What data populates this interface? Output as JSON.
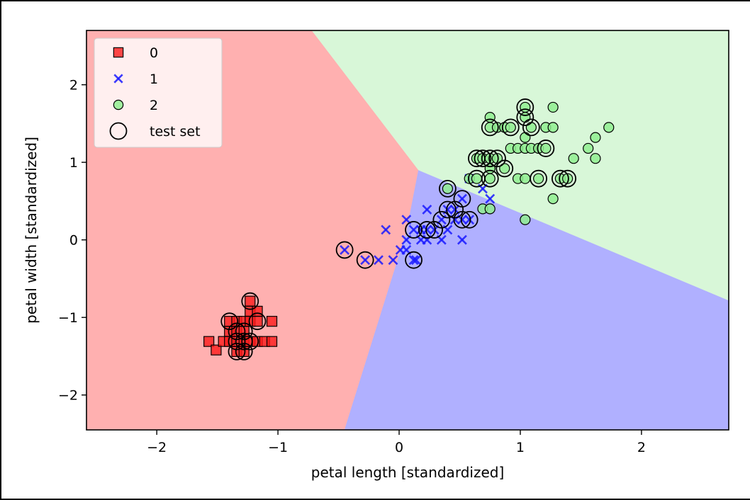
{
  "chart_data": {
    "type": "scatter",
    "title": "",
    "xlabel": "petal length [standardized]",
    "ylabel": "petal width [standardized]",
    "xlim": [
      -2.58,
      2.72
    ],
    "ylim": [
      -2.45,
      2.7
    ],
    "xticks": [
      -2,
      -1,
      0,
      1,
      2
    ],
    "xtick_labels": [
      "−2",
      "−1",
      "0",
      "1",
      "2"
    ],
    "yticks": [
      -2,
      -1,
      0,
      1,
      2
    ],
    "ytick_labels": [
      "−2",
      "−1",
      "0",
      "1",
      "2"
    ],
    "grid": false,
    "legend_position": "top-left",
    "regions": [
      {
        "class": "0",
        "color": "#ffb0b0",
        "polygon": [
          [
            -2.58,
            2.7
          ],
          [
            -0.72,
            2.7
          ],
          [
            0.16,
            0.9
          ],
          [
            0.06,
            0.1
          ],
          [
            -0.45,
            -2.45
          ],
          [
            -2.58,
            -2.45
          ]
        ]
      },
      {
        "class": "1",
        "color": "#b0b0ff",
        "polygon": [
          [
            0.16,
            0.9
          ],
          [
            2.72,
            -0.78
          ],
          [
            2.72,
            -2.45
          ],
          [
            -0.45,
            -2.45
          ],
          [
            0.06,
            0.1
          ]
        ]
      },
      {
        "class": "2",
        "color": "#d8f7d8",
        "polygon": [
          [
            -0.72,
            2.7
          ],
          [
            2.72,
            2.7
          ],
          [
            2.72,
            -0.78
          ],
          [
            0.16,
            0.9
          ]
        ]
      }
    ],
    "series": [
      {
        "name": "0",
        "marker": "square",
        "color": "#ff1a1a",
        "points": [
          [
            -1.57,
            -1.31
          ],
          [
            -1.51,
            -1.42
          ],
          [
            -1.45,
            -1.31
          ],
          [
            -1.4,
            -1.31
          ],
          [
            -1.4,
            -1.18
          ],
          [
            -1.4,
            -1.05
          ],
          [
            -1.34,
            -1.31
          ],
          [
            -1.34,
            -1.18
          ],
          [
            -1.34,
            -1.05
          ],
          [
            -1.34,
            -1.44
          ],
          [
            -1.28,
            -1.31
          ],
          [
            -1.28,
            -1.18
          ],
          [
            -1.28,
            -1.05
          ],
          [
            -1.28,
            -1.44
          ],
          [
            -1.23,
            -1.31
          ],
          [
            -1.23,
            -1.05
          ],
          [
            -1.23,
            -0.92
          ],
          [
            -1.23,
            -0.79
          ],
          [
            -1.17,
            -1.31
          ],
          [
            -1.17,
            -1.05
          ],
          [
            -1.17,
            -0.92
          ],
          [
            -1.11,
            -1.31
          ],
          [
            -1.05,
            -1.05
          ],
          [
            -1.05,
            -1.31
          ]
        ]
      },
      {
        "name": "1",
        "marker": "x",
        "color": "#1a1aff",
        "points": [
          [
            -0.45,
            -0.13
          ],
          [
            -0.28,
            -0.26
          ],
          [
            -0.17,
            -0.26
          ],
          [
            -0.11,
            0.13
          ],
          [
            -0.05,
            -0.26
          ],
          [
            0.01,
            -0.13
          ],
          [
            0.06,
            0
          ],
          [
            0.06,
            0.26
          ],
          [
            0.06,
            -0.13
          ],
          [
            0.12,
            0.13
          ],
          [
            0.12,
            -0.26
          ],
          [
            0.14,
            -0.26
          ],
          [
            0.18,
            0.13
          ],
          [
            0.18,
            0
          ],
          [
            0.23,
            0.13
          ],
          [
            0.23,
            0
          ],
          [
            0.23,
            0.39
          ],
          [
            0.29,
            0.13
          ],
          [
            0.35,
            0
          ],
          [
            0.35,
            0.26
          ],
          [
            0.4,
            0.39
          ],
          [
            0.4,
            0.13
          ],
          [
            0.46,
            0.39
          ],
          [
            0.46,
            0.26
          ],
          [
            0.52,
            0.26
          ],
          [
            0.52,
            0.53
          ],
          [
            0.52,
            0
          ],
          [
            0.58,
            0.26
          ],
          [
            0.58,
            0.79
          ],
          [
            0.69,
            0.66
          ],
          [
            0.75,
            0.53
          ]
        ]
      },
      {
        "name": "2",
        "marker": "circle",
        "color": "#90ee90",
        "points": [
          [
            0.4,
            0.66
          ],
          [
            0.58,
            0.79
          ],
          [
            0.64,
            1.05
          ],
          [
            0.64,
            0.79
          ],
          [
            0.69,
            1.05
          ],
          [
            0.69,
            0.4
          ],
          [
            0.75,
            1.58
          ],
          [
            0.75,
            1.45
          ],
          [
            0.75,
            1.05
          ],
          [
            0.75,
            0.92
          ],
          [
            0.75,
            0.79
          ],
          [
            0.75,
            0.4
          ],
          [
            0.81,
            1.05
          ],
          [
            0.81,
            1.45
          ],
          [
            0.87,
            0.92
          ],
          [
            0.87,
            1.45
          ],
          [
            0.92,
            1.45
          ],
          [
            0.92,
            1.18
          ],
          [
            0.98,
            0.79
          ],
          [
            0.98,
            1.18
          ],
          [
            1.04,
            1.32
          ],
          [
            1.04,
            1.58
          ],
          [
            1.04,
            1.71
          ],
          [
            1.04,
            1.18
          ],
          [
            1.04,
            0.79
          ],
          [
            1.04,
            0.26
          ],
          [
            1.09,
            1.45
          ],
          [
            1.09,
            1.18
          ],
          [
            1.15,
            1.18
          ],
          [
            1.15,
            0.79
          ],
          [
            1.21,
            1.45
          ],
          [
            1.21,
            1.18
          ],
          [
            1.27,
            1.71
          ],
          [
            1.27,
            1.45
          ],
          [
            1.27,
            0.53
          ],
          [
            1.33,
            0.79
          ],
          [
            1.39,
            0.79
          ],
          [
            1.44,
            1.05
          ],
          [
            1.56,
            1.18
          ],
          [
            1.62,
            1.32
          ],
          [
            1.62,
            1.05
          ],
          [
            1.73,
            1.45
          ]
        ]
      }
    ],
    "test_set": {
      "name": "test set",
      "marker": "open-circle",
      "points": [
        [
          -1.23,
          -0.79
        ],
        [
          -1.4,
          -1.05
        ],
        [
          -1.34,
          -1.18
        ],
        [
          -1.17,
          -1.05
        ],
        [
          -1.28,
          -1.31
        ],
        [
          -1.34,
          -1.31
        ],
        [
          -1.28,
          -1.44
        ],
        [
          -1.34,
          -1.44
        ],
        [
          -1.23,
          -1.31
        ],
        [
          -1.28,
          -1.18
        ],
        [
          -0.45,
          -0.13
        ],
        [
          -0.28,
          -0.26
        ],
        [
          0.12,
          -0.26
        ],
        [
          0.12,
          0.13
        ],
        [
          0.23,
          0.13
        ],
        [
          0.29,
          0.13
        ],
        [
          0.35,
          0.26
        ],
        [
          0.4,
          0.39
        ],
        [
          0.4,
          0.66
        ],
        [
          0.46,
          0.39
        ],
        [
          0.52,
          0.53
        ],
        [
          0.52,
          0.26
        ],
        [
          0.58,
          0.26
        ],
        [
          0.64,
          1.05
        ],
        [
          0.64,
          0.79
        ],
        [
          0.69,
          1.05
        ],
        [
          0.75,
          1.45
        ],
        [
          0.75,
          1.05
        ],
        [
          0.75,
          0.79
        ],
        [
          0.81,
          1.05
        ],
        [
          0.87,
          0.92
        ],
        [
          0.92,
          1.45
        ],
        [
          1.04,
          1.58
        ],
        [
          1.04,
          1.71
        ],
        [
          1.09,
          1.45
        ],
        [
          1.21,
          1.18
        ],
        [
          1.15,
          0.79
        ],
        [
          1.33,
          0.79
        ],
        [
          1.39,
          0.79
        ]
      ]
    },
    "legend": [
      {
        "label": "0",
        "marker": "square",
        "color": "#ff1a1a"
      },
      {
        "label": "1",
        "marker": "x",
        "color": "#1a1aff"
      },
      {
        "label": "2",
        "marker": "circle",
        "color": "#90ee90"
      },
      {
        "label": "test set",
        "marker": "open-circle",
        "color": "#000000"
      }
    ]
  }
}
